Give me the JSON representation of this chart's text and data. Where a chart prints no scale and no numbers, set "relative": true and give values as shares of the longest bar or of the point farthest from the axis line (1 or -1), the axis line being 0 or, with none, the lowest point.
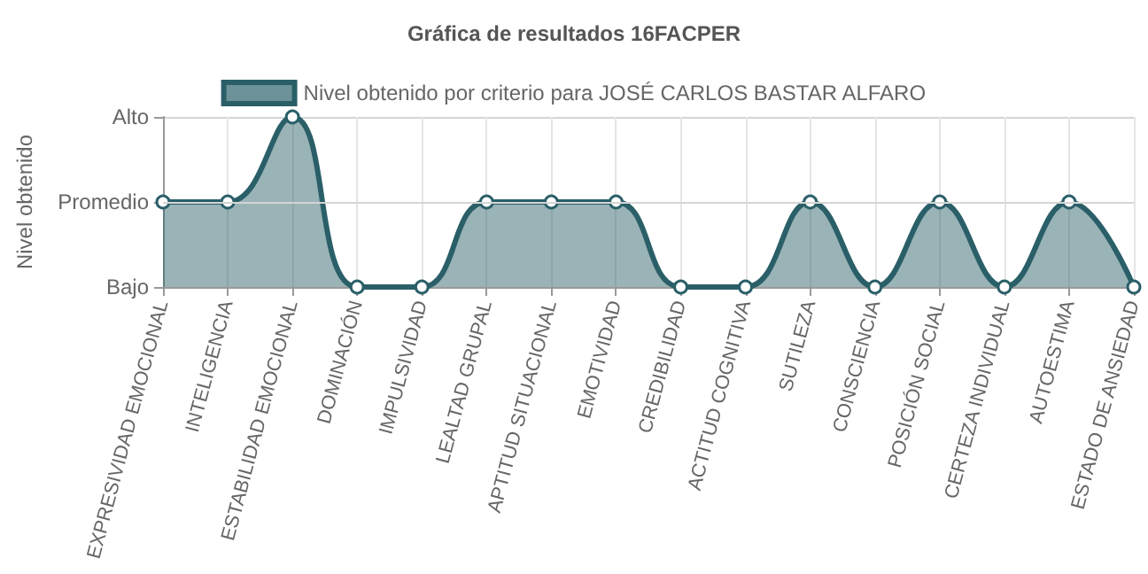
{
  "chart_data": {
    "type": "area",
    "title": "Gráfica de resultados 16FACPER",
    "ylabel": "Nivel obtenido",
    "categories": [
      "EXPRESIVIDAD EMOCIONAL",
      "INTELIGENCIA",
      "ESTABILIDAD EMOCIONAL",
      "DOMINACIÓN",
      "IMPULSIVIDAD",
      "LEALTAD GRUPAL",
      "APTITUD SITUACIONAL",
      "EMOTIVIDAD",
      "CREDIBILIDAD",
      "ACTITUD COGNITIVA",
      "SUTILEZA",
      "CONSCIENCIA",
      "POSICIÓN SOCIAL",
      "CERTEZA INDIVIDUAL",
      "AUTOESTIMA",
      "ESTADO DE ANSIEDAD"
    ],
    "series": [
      {
        "name": "Nivel obtenido por criterio para JOSÉ CARLOS BASTAR ALFARO",
        "color": "#2a5f68",
        "values": [
          0.5,
          0.5,
          1,
          0,
          0,
          0.5,
          0.5,
          0.5,
          0,
          0,
          0.5,
          0,
          0.5,
          0,
          0.5,
          0
        ]
      }
    ],
    "relative": true,
    "ref_lines": [
      {
        "axis": "y",
        "value": 0.5,
        "color": "#d5d5d5"
      }
    ],
    "y_categories": [
      "Alto",
      "Promedio",
      "Bajo"
    ],
    "grid": true,
    "legend": "top",
    "marker": "circle",
    "line_style": "solid"
  }
}
